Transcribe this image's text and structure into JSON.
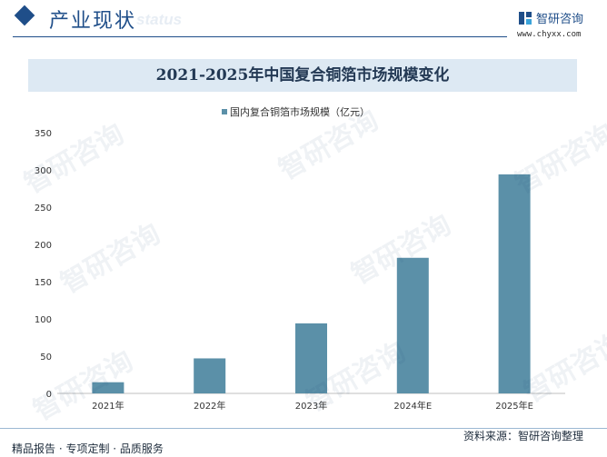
{
  "header": {
    "section_title": "产业现状",
    "ghost_text": "status",
    "brand": "智研咨询",
    "website": "www.chyxx.com"
  },
  "footer": {
    "left": "精品报告 · 专项定制 · 品质服务",
    "right": "资料来源：智研咨询整理"
  },
  "watermark_text": "智研咨询",
  "colors": {
    "bar": "#5b90a8",
    "accent": "#1f4e89",
    "title_band": "#dde9f3"
  },
  "chart_data": {
    "type": "bar",
    "title": "2021-2025年中国复合铜箔市场规模变化",
    "categories": [
      "2021年",
      "2022年",
      "2023年",
      "2024年E",
      "2025年E"
    ],
    "series": [
      {
        "name": "国内复合铜箔市场规模（亿元）",
        "values": [
          15,
          47,
          94,
          182,
          294
        ]
      }
    ],
    "ylim": [
      0,
      350
    ],
    "yticks": [
      0,
      50,
      100,
      150,
      200,
      250,
      300,
      350
    ],
    "legend_position": "top-center",
    "grid": false
  }
}
